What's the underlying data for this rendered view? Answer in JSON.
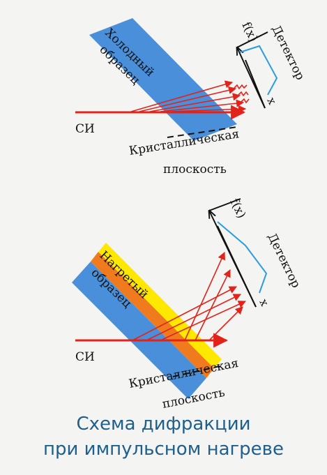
{
  "colors": {
    "cold_sample": "#4a8fd9",
    "heated_layer": "#ffe800",
    "heated_core": "#f07a1e",
    "beam": "#e2231a",
    "detector_curve": "#2a9de0",
    "caption": "#1f5f8b"
  },
  "top": {
    "sample_label": [
      "Холодный",
      "образец"
    ],
    "source_label": "СИ",
    "plane_label": [
      "Кристаллическая",
      "плоскость"
    ],
    "detector_label": "Детектор",
    "y_axis": "f(x)",
    "x_axis": "x"
  },
  "bottom": {
    "sample_label": [
      "Нагретый",
      "образец"
    ],
    "source_label": "СИ",
    "plane_label": [
      "Кристаллическая",
      "плоскость"
    ],
    "detector_label": "Детектор",
    "y_axis": "f(x)",
    "x_axis": "x"
  },
  "caption": [
    "Схема дифракции",
    "при импульсном нагреве"
  ]
}
